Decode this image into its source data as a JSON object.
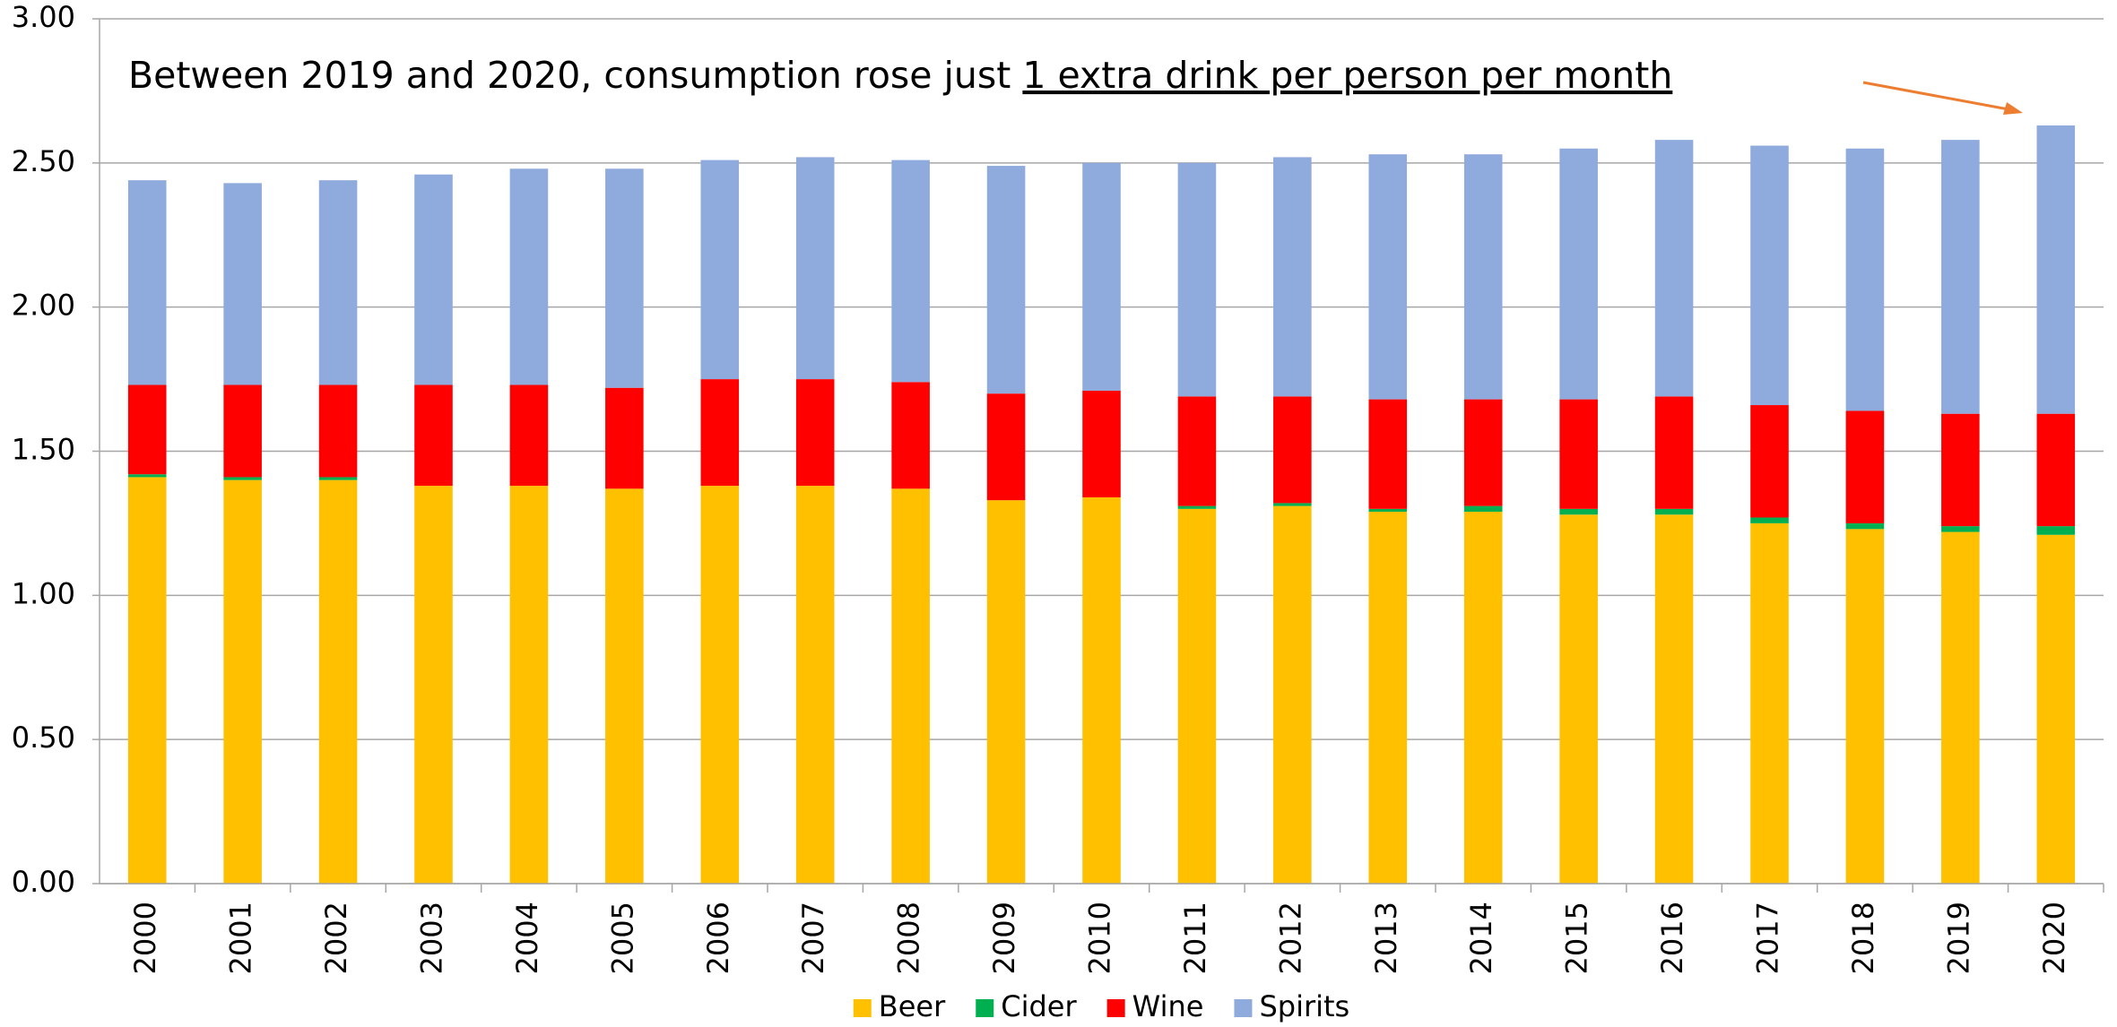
{
  "chart_data": {
    "type": "stacked_bar",
    "annotation": [
      "Between 2019 and 2020, consumption rose just ",
      "1 extra drink per person per month"
    ],
    "categories": [
      "2000",
      "2001",
      "2002",
      "2003",
      "2004",
      "2005",
      "2006",
      "2007",
      "2008",
      "2009",
      "2010",
      "2011",
      "2012",
      "2013",
      "2014",
      "2015",
      "2016",
      "2017",
      "2018",
      "2019",
      "2020"
    ],
    "series": [
      {
        "name": "Beer",
        "color": "#ffc000",
        "values": [
          1.41,
          1.4,
          1.4,
          1.38,
          1.38,
          1.37,
          1.38,
          1.38,
          1.37,
          1.33,
          1.34,
          1.3,
          1.31,
          1.29,
          1.29,
          1.28,
          1.28,
          1.25,
          1.23,
          1.22,
          1.21
        ]
      },
      {
        "name": "Cider",
        "color": "#00b050",
        "values": [
          0.01,
          0.01,
          0.01,
          0,
          0,
          0,
          0,
          0,
          0,
          0,
          0,
          0.01,
          0.01,
          0.01,
          0.02,
          0.02,
          0.02,
          0.02,
          0.02,
          0.02,
          0.03
        ]
      },
      {
        "name": "Wine",
        "color": "#ff0000",
        "values": [
          0.31,
          0.32,
          0.32,
          0.35,
          0.35,
          0.35,
          0.37,
          0.37,
          0.37,
          0.37,
          0.37,
          0.38,
          0.37,
          0.38,
          0.37,
          0.38,
          0.39,
          0.39,
          0.39,
          0.39,
          0.39
        ]
      },
      {
        "name": "Spirits",
        "color": "#8faadc",
        "values": [
          0.71,
          0.7,
          0.71,
          0.73,
          0.75,
          0.76,
          0.76,
          0.77,
          0.77,
          0.79,
          0.79,
          0.81,
          0.83,
          0.85,
          0.85,
          0.87,
          0.89,
          0.9,
          0.91,
          0.95,
          1.0
        ]
      }
    ],
    "ylim": [
      0,
      3
    ],
    "yticks": [
      {
        "value": 0,
        "label": "0.00"
      },
      {
        "value": 0.5,
        "label": "0.50"
      },
      {
        "value": 1,
        "label": "1.00"
      },
      {
        "value": 1.5,
        "label": "1.50"
      },
      {
        "value": 2,
        "label": "2.00"
      },
      {
        "value": 2.5,
        "label": "2.50"
      },
      {
        "value": 3,
        "label": "3.00"
      }
    ],
    "grid": true,
    "legend": "bottom"
  }
}
